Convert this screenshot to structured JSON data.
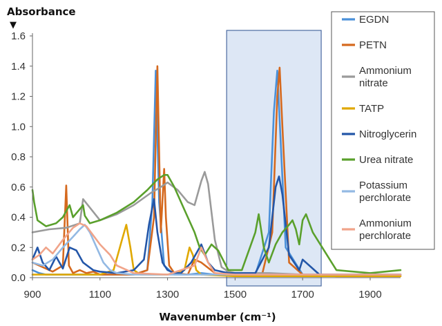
{
  "chart_data": {
    "type": "line",
    "ylabel": "Absorbance",
    "xlabel": "Wavenumber (cm⁻¹)",
    "xlim": [
      900,
      1990
    ],
    "ylim": [
      0,
      1.6
    ],
    "xticks": [
      "900",
      "1100",
      "1300",
      "1500",
      "1700",
      "1900"
    ],
    "yticks": [
      "0.0",
      "0.2",
      "0.4",
      "0.6",
      "0.8",
      "1.0",
      "1.2",
      "1.4",
      "1.6"
    ],
    "grid": false,
    "legend_position": "right",
    "highlight_region": [
      1475,
      1755
    ],
    "series": [
      {
        "name": "EGDN",
        "color": "#4a90d9",
        "legend_lines": [
          "EGDN"
        ],
        "x": [
          900,
          920,
          940,
          960,
          980,
          1000,
          1020,
          1040,
          1060,
          1080,
          1100,
          1150,
          1200,
          1240,
          1255,
          1265,
          1275,
          1290,
          1320,
          1360,
          1400,
          1440,
          1480,
          1560,
          1600,
          1615,
          1625,
          1635,
          1650,
          1700,
          1800,
          1900,
          1990
        ],
        "y": [
          0.05,
          0.03,
          0.02,
          0.02,
          0.02,
          0.02,
          0.02,
          0.02,
          0.02,
          0.02,
          0.02,
          0.02,
          0.02,
          0.05,
          0.5,
          1.37,
          0.5,
          0.08,
          0.02,
          0.02,
          0.03,
          0.02,
          0.02,
          0.02,
          0.3,
          1.1,
          1.37,
          0.9,
          0.2,
          0.02,
          0.02,
          0.02,
          0.02
        ]
      },
      {
        "name": "PETN",
        "color": "#d5691e",
        "legend_lines": [
          "PETN"
        ],
        "x": [
          900,
          930,
          960,
          990,
          1000,
          1008,
          1020,
          1040,
          1060,
          1080,
          1100,
          1150,
          1200,
          1240,
          1260,
          1270,
          1280,
          1290,
          1295,
          1305,
          1320,
          1360,
          1380,
          1400,
          1440,
          1500,
          1580,
          1610,
          1625,
          1632,
          1640,
          1660,
          1700,
          1800,
          1990
        ],
        "y": [
          0.1,
          0.07,
          0.04,
          0.08,
          0.61,
          0.08,
          0.03,
          0.05,
          0.03,
          0.04,
          0.02,
          0.02,
          0.02,
          0.05,
          0.4,
          1.4,
          0.3,
          0.72,
          0.4,
          0.08,
          0.03,
          0.02,
          0.12,
          0.1,
          0.03,
          0.02,
          0.02,
          0.3,
          1.2,
          1.39,
          1.0,
          0.1,
          0.02,
          0.01,
          0.01
        ]
      },
      {
        "name": "Ammonium nitrate",
        "color": "#9a9a9a",
        "legend_lines": [
          "Ammonium",
          "nitrate"
        ],
        "x": [
          900,
          950,
          1000,
          1040,
          1050,
          1100,
          1150,
          1200,
          1250,
          1280,
          1300,
          1330,
          1360,
          1380,
          1400,
          1410,
          1420,
          1440,
          1460,
          1480,
          1500,
          1600,
          1700,
          1800,
          1990
        ],
        "y": [
          0.3,
          0.32,
          0.33,
          0.36,
          0.52,
          0.38,
          0.42,
          0.48,
          0.56,
          0.6,
          0.63,
          0.58,
          0.5,
          0.48,
          0.64,
          0.7,
          0.62,
          0.25,
          0.07,
          0.04,
          0.03,
          0.03,
          0.02,
          0.02,
          0.02
        ]
      },
      {
        "name": "TATP",
        "color": "#e0a800",
        "legend_lines": [
          "TATP"
        ],
        "x": [
          900,
          950,
          1000,
          1100,
          1140,
          1165,
          1178,
          1190,
          1200,
          1220,
          1250,
          1300,
          1350,
          1365,
          1375,
          1385,
          1400,
          1500,
          1700,
          1990
        ],
        "y": [
          0.02,
          0.02,
          0.02,
          0.02,
          0.05,
          0.25,
          0.35,
          0.2,
          0.05,
          0.02,
          0.02,
          0.02,
          0.05,
          0.2,
          0.15,
          0.05,
          0.02,
          0.01,
          0.01,
          0.01
        ]
      },
      {
        "name": "Nitroglycerin",
        "color": "#2356a8",
        "legend_lines": [
          "Nitroglycerin"
        ],
        "x": [
          900,
          915,
          930,
          950,
          970,
          990,
          1010,
          1030,
          1050,
          1080,
          1100,
          1150,
          1200,
          1230,
          1245,
          1260,
          1270,
          1285,
          1300,
          1320,
          1340,
          1370,
          1400,
          1420,
          1440,
          1480,
          1560,
          1600,
          1620,
          1630,
          1640,
          1660,
          1690,
          1700,
          1750,
          1850,
          1990
        ],
        "y": [
          0.12,
          0.2,
          0.1,
          0.05,
          0.14,
          0.06,
          0.2,
          0.18,
          0.1,
          0.05,
          0.04,
          0.03,
          0.05,
          0.12,
          0.35,
          0.52,
          0.3,
          0.1,
          0.05,
          0.03,
          0.03,
          0.1,
          0.22,
          0.1,
          0.05,
          0.03,
          0.03,
          0.2,
          0.6,
          0.67,
          0.55,
          0.15,
          0.05,
          0.12,
          0.02,
          0.02,
          0.02
        ]
      },
      {
        "name": "Urea nitrate",
        "color": "#5aa02c",
        "legend_lines": [
          "Urea nitrate"
        ],
        "x": [
          900,
          905,
          915,
          940,
          970,
          990,
          1010,
          1020,
          1035,
          1050,
          1055,
          1070,
          1100,
          1150,
          1200,
          1240,
          1270,
          1290,
          1300,
          1320,
          1350,
          1380,
          1395,
          1410,
          1430,
          1450,
          1480,
          1520,
          1560,
          1570,
          1585,
          1600,
          1620,
          1640,
          1660,
          1670,
          1680,
          1690,
          1700,
          1710,
          1730,
          1800,
          1900,
          1990
        ],
        "y": [
          0.58,
          0.5,
          0.38,
          0.34,
          0.36,
          0.4,
          0.48,
          0.4,
          0.44,
          0.48,
          0.41,
          0.36,
          0.38,
          0.43,
          0.5,
          0.58,
          0.65,
          0.68,
          0.68,
          0.6,
          0.45,
          0.3,
          0.2,
          0.15,
          0.22,
          0.18,
          0.05,
          0.05,
          0.3,
          0.42,
          0.2,
          0.1,
          0.22,
          0.3,
          0.35,
          0.38,
          0.32,
          0.22,
          0.38,
          0.42,
          0.3,
          0.05,
          0.03,
          0.05
        ]
      },
      {
        "name": "Potassium perchlorate",
        "color": "#93b9e3",
        "legend_lines": [
          "Potassium",
          "perchlorate"
        ],
        "x": [
          900,
          930,
          960,
          990,
          1020,
          1040,
          1055,
          1070,
          1090,
          1110,
          1130,
          1150,
          1200,
          1300,
          1400,
          1500,
          1700,
          1990
        ],
        "y": [
          0.1,
          0.08,
          0.12,
          0.2,
          0.27,
          0.32,
          0.35,
          0.3,
          0.2,
          0.1,
          0.05,
          0.03,
          0.02,
          0.02,
          0.02,
          0.02,
          0.02,
          0.02
        ]
      },
      {
        "name": "Ammonium perchlorate",
        "color": "#f0a48a",
        "legend_lines": [
          "Ammonium",
          "perchlorate"
        ],
        "x": [
          900,
          920,
          940,
          960,
          990,
          1020,
          1040,
          1060,
          1080,
          1100,
          1130,
          1150,
          1200,
          1300,
          1380,
          1400,
          1420,
          1440,
          1500,
          1700,
          1990
        ],
        "y": [
          0.12,
          0.15,
          0.2,
          0.16,
          0.25,
          0.33,
          0.36,
          0.34,
          0.28,
          0.22,
          0.15,
          0.08,
          0.03,
          0.02,
          0.08,
          0.2,
          0.1,
          0.03,
          0.02,
          0.02,
          0.02
        ]
      }
    ]
  }
}
